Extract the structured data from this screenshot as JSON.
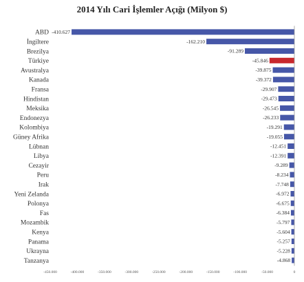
{
  "chart_data": {
    "type": "bar",
    "orientation": "horizontal",
    "title": "2014 Yılı Cari İşlemler Açığı  (Milyon $)",
    "xlabel": "",
    "ylabel": "",
    "xlim": [
      -450000,
      0
    ],
    "x_ticks": [
      "-450.000",
      "-400.000",
      "-350.000",
      "-300.000",
      "-250.000",
      "-200.000",
      "-150.000",
      "-100.000",
      "-50.000",
      "0"
    ],
    "x_tick_values": [
      -450000,
      -400000,
      -350000,
      -300000,
      -250000,
      -200000,
      -150000,
      -100000,
      -50000,
      0
    ],
    "categories": [
      "ABD",
      "İngiltere",
      "Brezilya",
      "Türkiye",
      "Avustralya",
      "Kanada",
      "Fransa",
      "Hindistan",
      "Meksika",
      "Endonezya",
      "Kolombiya",
      "Güney Afrika",
      "Lübnan",
      "Libya",
      "Cezayir",
      "Peru",
      "Irak",
      "Yeni Zelanda",
      "Polonya",
      "Fas",
      "Mozambik",
      "Kenya",
      "Panama",
      "Ukrayna",
      "Tanzanya"
    ],
    "values": [
      -410627,
      -162210,
      -91289,
      -45846,
      -39875,
      -39372,
      -29907,
      -29473,
      -26545,
      -26233,
      -19291,
      -19055,
      -12451,
      -12391,
      -9289,
      -8234,
      -7748,
      -6972,
      -6675,
      -6384,
      -5797,
      -5604,
      -5257,
      -5228,
      -4868
    ],
    "value_labels": [
      "-410.627",
      "-162.210",
      "-91.289",
      "-45.846",
      "-39.875",
      "-39.372",
      "-29.907",
      "-29.473",
      "-26.545",
      "-26.233",
      "-19.291",
      "-19.055",
      "-12.451",
      "-12.391",
      "-9.289",
      "-8.234",
      "-7.748",
      "-6.972",
      "-6.675",
      "-6.384",
      "-5.797",
      "-5.604",
      "-5.257",
      "-5.228",
      "-4.868"
    ],
    "colors": {
      "default": "#4657a8",
      "highlight": "#c8282d"
    },
    "highlight_category": "Türkiye",
    "grid": false
  }
}
